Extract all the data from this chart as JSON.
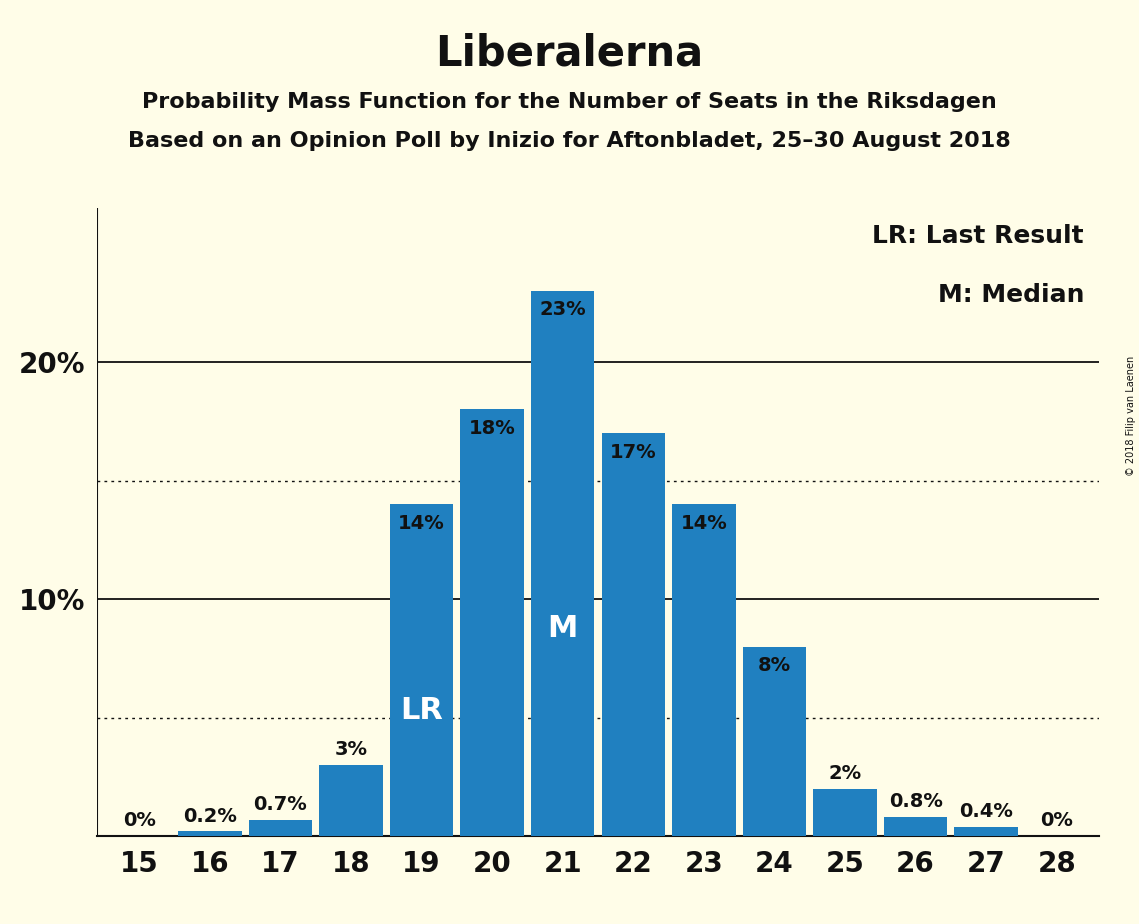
{
  "title": "Liberalerna",
  "subtitle1": "Probability Mass Function for the Number of Seats in the Riksdagen",
  "subtitle2": "Based on an Opinion Poll by Inizio for Aftonbladet, 25–30 August 2018",
  "copyright": "© 2018 Filip van Laenen",
  "seats": [
    15,
    16,
    17,
    18,
    19,
    20,
    21,
    22,
    23,
    24,
    25,
    26,
    27,
    28
  ],
  "probabilities": [
    0.0,
    0.2,
    0.7,
    3.0,
    14.0,
    18.0,
    23.0,
    17.0,
    14.0,
    8.0,
    2.0,
    0.8,
    0.4,
    0.0
  ],
  "labels": [
    "0%",
    "0.2%",
    "0.7%",
    "3%",
    "14%",
    "18%",
    "23%",
    "17%",
    "14%",
    "8%",
    "2%",
    "0.8%",
    "0.4%",
    "0%"
  ],
  "bar_color": "#2080C0",
  "background_color": "#FFFDE8",
  "text_color": "#111111",
  "lr_seat": 19,
  "median_seat": 21,
  "legend_lr": "LR: Last Result",
  "legend_m": "M: Median",
  "hlines": [
    10.0,
    20.0
  ],
  "dotted_hlines": [
    5.0,
    15.0
  ],
  "title_fontsize": 30,
  "subtitle_fontsize": 16,
  "label_fontsize": 14,
  "axis_fontsize": 20,
  "legend_fontsize": 18,
  "bar_label_white_threshold": 5.0,
  "ylim_max": 26.5
}
